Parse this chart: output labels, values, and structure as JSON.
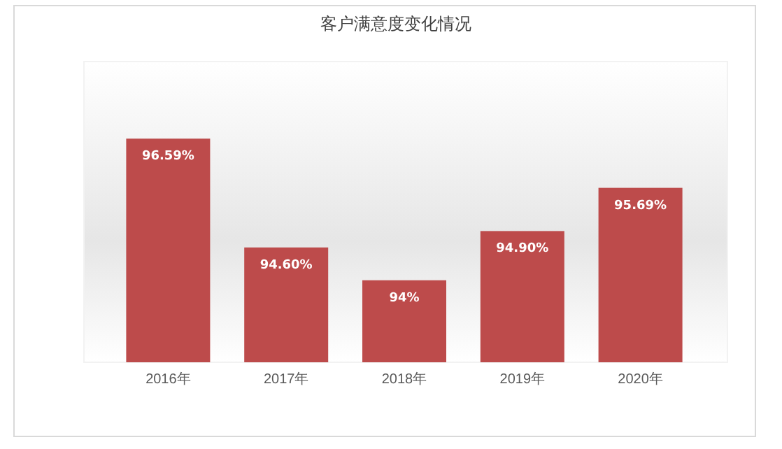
{
  "chart_data": {
    "type": "bar",
    "title": "客户满意度变化情况",
    "categories": [
      "2016年",
      "2017年",
      "2018年",
      "2019年",
      "2020年"
    ],
    "values": [
      96.59,
      94.6,
      94,
      94.9,
      95.69
    ],
    "value_labels": [
      "96.59%",
      "94.60%",
      "94%",
      "94.90%",
      "95.69%"
    ],
    "color": "#bd4b4b",
    "ylim": [
      92.5,
      98
    ],
    "tick_labels": "x"
  }
}
